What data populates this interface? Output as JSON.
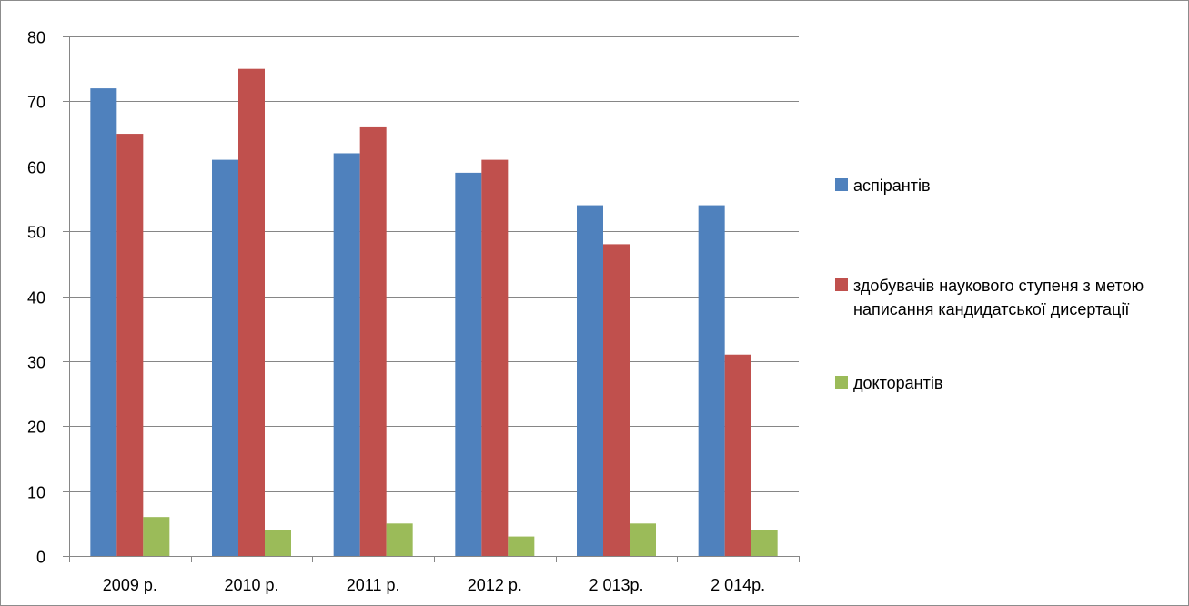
{
  "chart_data": {
    "type": "bar",
    "categories": [
      "2009 р.",
      "2010 р.",
      "2011 р.",
      "2012 р.",
      "2 013р.",
      "2 014р."
    ],
    "series": [
      {
        "name": "аспірантів",
        "color": "#4f81bd",
        "values": [
          72,
          61,
          62,
          59,
          54,
          54
        ]
      },
      {
        "name": "здобувачів наукового ступеня з метою написання кандидатської дисертації",
        "color": "#c0504d",
        "values": [
          65,
          75,
          66,
          61,
          48,
          31
        ]
      },
      {
        "name": "докторантів",
        "color": "#9bbb59",
        "values": [
          6,
          4,
          5,
          3,
          5,
          4
        ]
      }
    ],
    "ylim": [
      0,
      80
    ],
    "yticks": [
      0,
      10,
      20,
      30,
      40,
      50,
      60,
      70,
      80
    ],
    "grid": true,
    "legend": "right",
    "title": "",
    "xlabel": "",
    "ylabel": ""
  }
}
